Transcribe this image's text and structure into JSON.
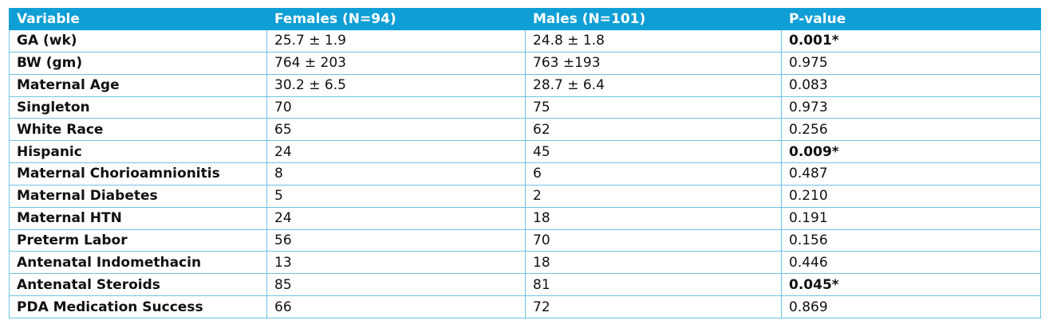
{
  "table": {
    "headers": [
      "Variable",
      "Females (N=94)",
      "Males (N=101)",
      "P-value"
    ],
    "rows": [
      {
        "variable": "GA (wk)",
        "females": "25.7 ± 1.9",
        "males": "24.8 ± 1.8",
        "p_value": "0.001*",
        "significant": true
      },
      {
        "variable": "BW (gm)",
        "females": "764 ± 203",
        "males": "763 ±193",
        "p_value": "0.975",
        "significant": false
      },
      {
        "variable": "Maternal Age",
        "females": "30.2 ± 6.5",
        "males": "28.7 ± 6.4",
        "p_value": "0.083",
        "significant": false
      },
      {
        "variable": "Singleton",
        "females": "70",
        "males": "75",
        "p_value": "0.973",
        "significant": false
      },
      {
        "variable": "White Race",
        "females": "65",
        "males": "62",
        "p_value": "0.256",
        "significant": false
      },
      {
        "variable": "Hispanic",
        "females": "24",
        "males": "45",
        "p_value": "0.009*",
        "significant": true
      },
      {
        "variable": "Maternal Chorioamnionitis",
        "females": "8",
        "males": "6",
        "p_value": "0.487",
        "significant": false
      },
      {
        "variable": "Maternal Diabetes",
        "females": "5",
        "males": "2",
        "p_value": "0.210",
        "significant": false
      },
      {
        "variable": "Maternal HTN",
        "females": "24",
        "males": "18",
        "p_value": "0.191",
        "significant": false
      },
      {
        "variable": "Preterm Labor",
        "females": "56",
        "males": "70",
        "p_value": "0.156",
        "significant": false
      },
      {
        "variable": "Antenatal Indomethacin",
        "females": "13",
        "males": "18",
        "p_value": "0.446",
        "significant": false
      },
      {
        "variable": "Antenatal Steroids",
        "females": "85",
        "males": "81",
        "p_value": "0.045*",
        "significant": true
      },
      {
        "variable": "PDA Medication Success",
        "females": "66",
        "males": "72",
        "p_value": "0.869",
        "significant": false
      }
    ]
  },
  "colors": {
    "header_bg": "#0f9ed5",
    "header_text": "#ffffff",
    "border": "#6fc3e3"
  }
}
